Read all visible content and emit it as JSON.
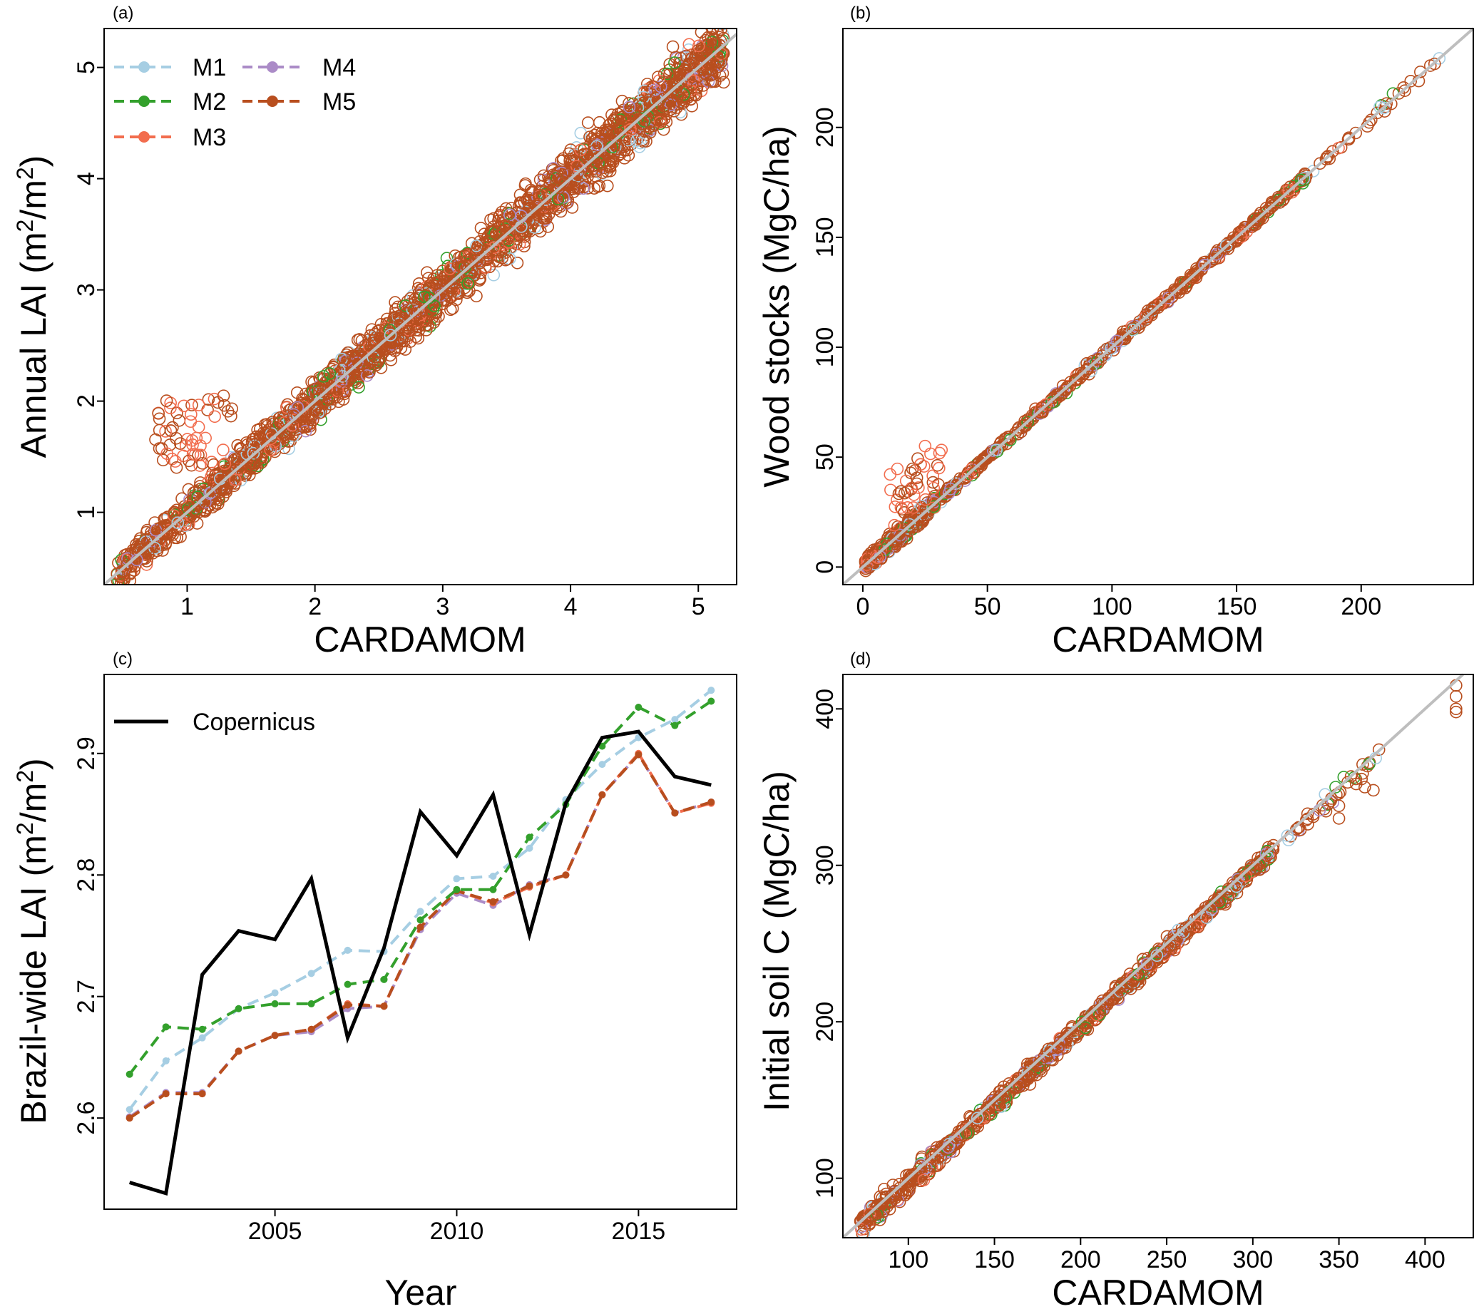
{
  "figure": {
    "colors": {
      "M1": "#a6cee3",
      "M2": "#33a02c",
      "M3": "#f26d4e",
      "M4": "#ab8bc7",
      "M5": "#b84e1e",
      "copernicus": "#000000",
      "one_to_one": "#bebebe"
    }
  },
  "chart_data": [
    {
      "id": "a",
      "type": "scatter",
      "panel_label": "(a)",
      "xlabel": "CARDAMOM",
      "ylabel_main": "Annual LAI (m",
      "ylabel_sup1": "2",
      "ylabel_mid": "/m",
      "ylabel_sup2": "2",
      "ylabel_end": ")",
      "xlim": [
        0.35,
        5.3
      ],
      "ylim": [
        0.35,
        5.35
      ],
      "xticks": [
        "1",
        "2",
        "3",
        "4",
        "5"
      ],
      "yticks": [
        "1",
        "2",
        "3",
        "4",
        "5"
      ],
      "xtick_values": [
        1,
        2,
        3,
        4,
        5
      ],
      "ytick_values": [
        1,
        2,
        3,
        4,
        5
      ],
      "legend": [
        "M1",
        "M2",
        "M3",
        "M4",
        "M5"
      ],
      "legend_position": "top-left",
      "series": [
        "M1",
        "M2",
        "M3",
        "M4",
        "M5"
      ],
      "one_to_one_line": true,
      "description": "Model vs CARDAMOM annual LAI scattered tightly around the 1:1 line between about 0.5 and 5.2"
    },
    {
      "id": "b",
      "type": "scatter",
      "panel_label": "(b)",
      "xlabel": "CARDAMOM",
      "ylabel": "Wood stocks (MgC/ha)",
      "xlim": [
        -8,
        245
      ],
      "ylim": [
        -8,
        245
      ],
      "xticks": [
        "0",
        "50",
        "100",
        "150",
        "200"
      ],
      "yticks": [
        "0",
        "50",
        "100",
        "150",
        "200"
      ],
      "xtick_values": [
        0,
        50,
        100,
        150,
        200
      ],
      "ytick_values": [
        0,
        50,
        100,
        150,
        200
      ],
      "series": [
        "M1",
        "M2",
        "M3",
        "M4",
        "M5"
      ],
      "one_to_one_line": true,
      "description": "Wood stocks 0 to about 235 MgC/ha along the 1:1 line"
    },
    {
      "id": "c",
      "type": "line",
      "panel_label": "(c)",
      "xlabel": "Year",
      "ylabel_main": "Brazil-wide LAI (m",
      "ylabel_sup1": "2",
      "ylabel_mid": "/m",
      "ylabel_sup2": "2",
      "ylabel_end": ")",
      "xlim": [
        2000.3,
        2017.7
      ],
      "ylim": [
        2.525,
        2.965
      ],
      "xticks": [
        "2005",
        "2010",
        "2015"
      ],
      "xtick_values": [
        2005,
        2010,
        2015
      ],
      "yticks": [
        "2.6",
        "2.7",
        "2.8",
        "2.9"
      ],
      "ytick_values": [
        2.6,
        2.7,
        2.8,
        2.9
      ],
      "legend": [
        "Copernicus"
      ],
      "legend_position": "top-left",
      "x": [
        2001,
        2002,
        2003,
        2004,
        2005,
        2006,
        2007,
        2008,
        2009,
        2010,
        2011,
        2012,
        2013,
        2014,
        2015,
        2016,
        2017
      ],
      "series": [
        {
          "name": "Copernicus",
          "values": [
            2.547,
            2.538,
            2.718,
            2.754,
            2.747,
            2.797,
            2.666,
            2.74,
            2.852,
            2.816,
            2.866,
            2.751,
            2.859,
            2.913,
            2.918,
            2.881,
            2.874
          ]
        },
        {
          "name": "M1",
          "values": [
            2.607,
            2.647,
            2.666,
            2.69,
            2.703,
            2.719,
            2.738,
            2.737,
            2.77,
            2.797,
            2.799,
            2.822,
            2.862,
            2.891,
            2.913,
            2.928,
            2.952
          ]
        },
        {
          "name": "M2",
          "values": [
            2.636,
            2.675,
            2.673,
            2.69,
            2.694,
            2.694,
            2.71,
            2.714,
            2.763,
            2.788,
            2.788,
            2.831,
            2.858,
            2.906,
            2.938,
            2.923,
            2.943
          ]
        },
        {
          "name": "M3",
          "values": [
            2.6,
            2.62,
            2.62,
            2.655,
            2.668,
            2.673,
            2.694,
            2.692,
            2.757,
            2.787,
            2.777,
            2.79,
            2.8,
            2.866,
            2.9,
            2.851,
            2.859
          ]
        },
        {
          "name": "M4",
          "values": [
            2.601,
            2.621,
            2.621,
            2.655,
            2.668,
            2.671,
            2.69,
            2.692,
            2.755,
            2.785,
            2.775,
            2.792,
            2.8,
            2.866,
            2.899,
            2.851,
            2.86
          ]
        },
        {
          "name": "M5",
          "values": [
            2.6,
            2.62,
            2.62,
            2.655,
            2.668,
            2.673,
            2.693,
            2.692,
            2.757,
            2.787,
            2.778,
            2.791,
            2.8,
            2.866,
            2.899,
            2.851,
            2.86
          ]
        }
      ]
    },
    {
      "id": "d",
      "type": "scatter",
      "panel_label": "(d)",
      "xlabel": "CARDAMOM",
      "ylabel": "Initial soil C (MgC/ha)",
      "xlim": [
        62,
        428
      ],
      "ylim": [
        62,
        422
      ],
      "xticks": [
        "100",
        "150",
        "200",
        "250",
        "300",
        "350",
        "400"
      ],
      "yticks": [
        "100",
        "200",
        "300",
        "400"
      ],
      "xtick_values": [
        100,
        150,
        200,
        250,
        300,
        350,
        400
      ],
      "ytick_values": [
        100,
        200,
        300,
        400
      ],
      "series": [
        "M1",
        "M2",
        "M3",
        "M4",
        "M5"
      ],
      "one_to_one_line": true,
      "description": "Initial soil C about 70 to 415 MgC/ha along the 1:1 line"
    }
  ]
}
